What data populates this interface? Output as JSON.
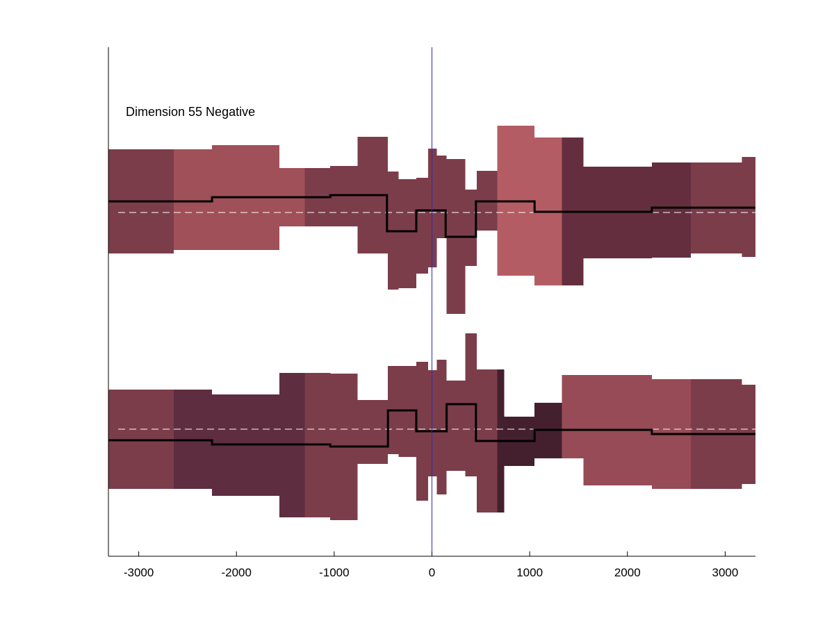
{
  "chart_data": {
    "type": "area",
    "title": "",
    "annotation": "Dimension 55 Negative",
    "xlabel": "",
    "ylabel": "",
    "xlim": [
      -3310,
      3310
    ],
    "xticks": [
      -3000,
      -2000,
      -1000,
      0,
      1000,
      2000,
      3000
    ],
    "tick_labels": [
      "-3000",
      "-2000",
      "-1000",
      "0",
      "1000",
      "2000",
      "3000"
    ],
    "marker_x": 0,
    "marker_color": "#2b2bb8",
    "baseline_color": "#ffffff",
    "line_color": "#000000",
    "grid": false,
    "tracks": [
      {
        "name": "",
        "baseline": 0,
        "segments": [
          {
            "x0": -3310,
            "x1": -3170,
            "low": -0.59,
            "high": 0.91,
            "color": "#7c3d4b"
          },
          {
            "x0": -3170,
            "x1": -2640,
            "low": -0.59,
            "high": 0.91,
            "color": "#7c3d4b"
          },
          {
            "x0": -2640,
            "x1": -2250,
            "low": -0.54,
            "high": 0.91,
            "color": "#a05058"
          },
          {
            "x0": -2250,
            "x1": -1560,
            "low": -0.54,
            "high": 0.97,
            "color": "#a05058"
          },
          {
            "x0": -1560,
            "x1": -1300,
            "low": -0.2,
            "high": 0.64,
            "color": "#a05058"
          },
          {
            "x0": -1300,
            "x1": -1040,
            "low": -0.2,
            "high": 0.64,
            "color": "#7c3d4b"
          },
          {
            "x0": -1040,
            "x1": -760,
            "low": -0.2,
            "high": 0.67,
            "color": "#7c3d4b"
          },
          {
            "x0": -760,
            "x1": -450,
            "low": -0.59,
            "high": 1.09,
            "color": "#7c3d4b"
          },
          {
            "x0": -450,
            "x1": -340,
            "low": -1.11,
            "high": 0.59,
            "color": "#7c3d4b"
          },
          {
            "x0": -340,
            "x1": -160,
            "low": -1.09,
            "high": 0.48,
            "color": "#7c3d4b"
          },
          {
            "x0": -160,
            "x1": -40,
            "low": -0.88,
            "high": 0.5,
            "color": "#7c3d4b"
          },
          {
            "x0": -40,
            "x1": 50,
            "low": -0.79,
            "high": 0.92,
            "color": "#7c3d4b"
          },
          {
            "x0": 50,
            "x1": 150,
            "low": -0.37,
            "high": 0.82,
            "color": "#7c3d4b"
          },
          {
            "x0": 150,
            "x1": 340,
            "low": -1.46,
            "high": 0.77,
            "color": "#7c3d4b"
          },
          {
            "x0": 340,
            "x1": 460,
            "low": -0.77,
            "high": 0.33,
            "color": "#7c3d4b"
          },
          {
            "x0": 460,
            "x1": 670,
            "low": -0.26,
            "high": 0.6,
            "color": "#7c3d4b"
          },
          {
            "x0": 670,
            "x1": 1050,
            "low": -0.91,
            "high": 1.25,
            "color": "#b45c63"
          },
          {
            "x0": 1050,
            "x1": 1330,
            "low": -1.05,
            "high": 1.08,
            "color": "#b45c63"
          },
          {
            "x0": 1330,
            "x1": 1550,
            "low": -1.05,
            "high": 1.08,
            "color": "#652e3e"
          },
          {
            "x0": 1550,
            "x1": 2250,
            "low": -0.66,
            "high": 0.66,
            "color": "#652e3e"
          },
          {
            "x0": 2250,
            "x1": 2650,
            "low": -0.65,
            "high": 0.72,
            "color": "#652e3e"
          },
          {
            "x0": 2650,
            "x1": 3170,
            "low": -0.59,
            "high": 0.72,
            "color": "#7c3d4b"
          },
          {
            "x0": 3170,
            "x1": 3310,
            "low": -0.64,
            "high": 0.8,
            "color": "#7c3d4b"
          }
        ],
        "line": {
          "x": [
            -3310,
            -2250,
            -2250,
            -1040,
            -1040,
            -460,
            -460,
            -160,
            -160,
            140,
            140,
            450,
            450,
            1050,
            1050,
            2250,
            2250,
            3310
          ],
          "y": [
            0.16,
            0.16,
            0.22,
            0.22,
            0.25,
            0.25,
            -0.27,
            -0.27,
            0.03,
            0.03,
            -0.35,
            -0.35,
            0.16,
            0.16,
            0.01,
            0.01,
            0.07,
            0.07
          ]
        }
      },
      {
        "name": "",
        "baseline": 0,
        "segments": [
          {
            "x0": -3310,
            "x1": -3170,
            "low": -0.86,
            "high": 0.57,
            "color": "#7c3d4b"
          },
          {
            "x0": -3170,
            "x1": -2640,
            "low": -0.86,
            "high": 0.57,
            "color": "#7c3d4b"
          },
          {
            "x0": -2640,
            "x1": -2250,
            "low": -0.86,
            "high": 0.57,
            "color": "#5e2d40"
          },
          {
            "x0": -2250,
            "x1": -1560,
            "low": -0.96,
            "high": 0.5,
            "color": "#5e2d40"
          },
          {
            "x0": -1560,
            "x1": -1300,
            "low": -1.27,
            "high": 0.81,
            "color": "#5e2d40"
          },
          {
            "x0": -1300,
            "x1": -1040,
            "low": -1.27,
            "high": 0.81,
            "color": "#7c3d4b"
          },
          {
            "x0": -1040,
            "x1": -760,
            "low": -1.31,
            "high": 0.8,
            "color": "#7c3d4b"
          },
          {
            "x0": -760,
            "x1": -450,
            "low": -0.5,
            "high": 0.42,
            "color": "#7c3d4b"
          },
          {
            "x0": -450,
            "x1": -340,
            "low": -0.36,
            "high": 0.91,
            "color": "#7c3d4b"
          },
          {
            "x0": -340,
            "x1": -160,
            "low": -0.4,
            "high": 0.91,
            "color": "#7c3d4b"
          },
          {
            "x0": -160,
            "x1": -40,
            "low": -1.03,
            "high": 0.97,
            "color": "#7c3d4b"
          },
          {
            "x0": -40,
            "x1": 50,
            "low": -0.68,
            "high": 0.85,
            "color": "#7c3d4b"
          },
          {
            "x0": 50,
            "x1": 150,
            "low": -0.94,
            "high": 1.0,
            "color": "#7c3d4b"
          },
          {
            "x0": 150,
            "x1": 340,
            "low": -0.6,
            "high": 0.7,
            "color": "#7c3d4b"
          },
          {
            "x0": 340,
            "x1": 460,
            "low": -0.68,
            "high": 1.38,
            "color": "#7c3d4b"
          },
          {
            "x0": 460,
            "x1": 670,
            "low": -1.2,
            "high": 0.86,
            "color": "#7c3d4b"
          },
          {
            "x0": 670,
            "x1": 740,
            "low": -1.2,
            "high": 0.86,
            "color": "#44202f"
          },
          {
            "x0": 740,
            "x1": 1050,
            "low": -0.53,
            "high": 0.18,
            "color": "#44202f"
          },
          {
            "x0": 1050,
            "x1": 1330,
            "low": -0.42,
            "high": 0.38,
            "color": "#44202f"
          },
          {
            "x0": 1330,
            "x1": 1550,
            "low": -0.42,
            "high": 0.78,
            "color": "#964b57"
          },
          {
            "x0": 1550,
            "x1": 2250,
            "low": -0.81,
            "high": 0.78,
            "color": "#964b57"
          },
          {
            "x0": 2250,
            "x1": 2650,
            "low": -0.86,
            "high": 0.72,
            "color": "#964b57"
          },
          {
            "x0": 2650,
            "x1": 3170,
            "low": -0.86,
            "high": 0.72,
            "color": "#7c3d4b"
          },
          {
            "x0": 3170,
            "x1": 3310,
            "low": -0.79,
            "high": 0.64,
            "color": "#7c3d4b"
          }
        ],
        "line": {
          "x": [
            -3310,
            -2250,
            -2250,
            -1040,
            -1040,
            -450,
            -450,
            -160,
            -160,
            150,
            150,
            450,
            450,
            1050,
            1050,
            2250,
            2250,
            3310
          ],
          "y": [
            -0.16,
            -0.16,
            -0.22,
            -0.22,
            -0.25,
            -0.25,
            0.27,
            0.27,
            -0.03,
            -0.03,
            0.36,
            0.36,
            -0.17,
            -0.17,
            -0.01,
            -0.01,
            -0.07,
            -0.07
          ]
        }
      }
    ]
  }
}
